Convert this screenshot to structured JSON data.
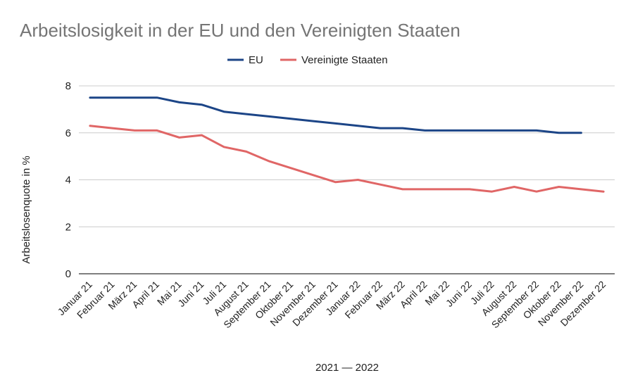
{
  "chart_data": {
    "type": "line",
    "title": "Arbeitslosigkeit in der EU und den Vereinigten Staaten",
    "xlabel": "2021 — 2022",
    "ylabel": "Arbeitslosenquote in %",
    "ylim": [
      0,
      8
    ],
    "yticks": [
      "0",
      "2",
      "4",
      "6",
      "8"
    ],
    "grid": true,
    "legend_position": "top-center",
    "categories": [
      "Januar 21",
      "Februar 21",
      "März 21",
      "April 21",
      "Mai 21",
      "Juni 21",
      "Juli 21",
      "August 21",
      "September 21",
      "Oktober 21",
      "November 21",
      "Dezember 21",
      "Januar 22",
      "Februar 22",
      "März 22",
      "April 22",
      "Mai 22",
      "Juni 22",
      "Juli 22",
      "August 22",
      "September 22",
      "Oktober 22",
      "November 22",
      "Dezember 22"
    ],
    "series": [
      {
        "name": "EU",
        "color": "#1c4587",
        "values": [
          7.5,
          7.5,
          7.5,
          7.5,
          7.3,
          7.2,
          6.9,
          6.8,
          6.7,
          6.6,
          6.5,
          6.4,
          6.3,
          6.2,
          6.2,
          6.1,
          6.1,
          6.1,
          6.1,
          6.1,
          6.1,
          6.0,
          6.0,
          null
        ]
      },
      {
        "name": "Vereinigte Staaten",
        "color": "#e06666",
        "values": [
          6.3,
          6.2,
          6.1,
          6.1,
          5.8,
          5.9,
          5.4,
          5.2,
          4.8,
          4.5,
          4.2,
          3.9,
          4.0,
          3.8,
          3.6,
          3.6,
          3.6,
          3.6,
          3.5,
          3.7,
          3.5,
          3.7,
          3.6,
          3.5
        ]
      }
    ]
  }
}
